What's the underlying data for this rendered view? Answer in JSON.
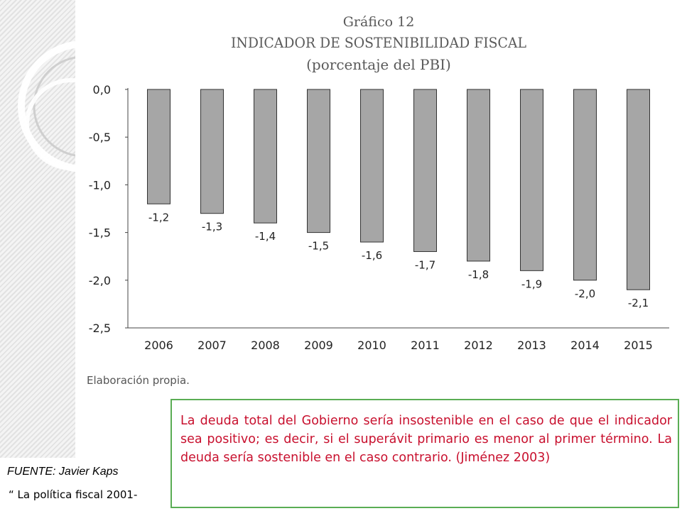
{
  "chart_data": {
    "type": "bar",
    "title": "Gráfico 12",
    "subtitle": "INDICADOR DE SOSTENIBILIDAD FISCAL",
    "subtitle2": "(porcentaje del PBI)",
    "categories": [
      "2006",
      "2007",
      "2008",
      "2009",
      "2010",
      "2011",
      "2012",
      "2013",
      "2014",
      "2015"
    ],
    "values": [
      -1.2,
      -1.3,
      -1.4,
      -1.5,
      -1.6,
      -1.7,
      -1.8,
      -1.9,
      -2.0,
      -2.1
    ],
    "value_labels": [
      "-1,2",
      "-1,3",
      "-1,4",
      "-1,5",
      "-1,6",
      "-1,7",
      "-1,8",
      "-1,9",
      "-2,0",
      "-2,1"
    ],
    "yticks": [
      0,
      -0.5,
      -1.0,
      -1.5,
      -2.0,
      -2.5
    ],
    "ytick_labels": [
      "0,0",
      "-0,5",
      "-1,0",
      "-1,5",
      "-2,0",
      "-2,5"
    ],
    "ylim": [
      -2.5,
      0
    ],
    "xlabel": "",
    "ylabel": "",
    "grid": false,
    "legend": "none",
    "footnote": "Elaboración propia.",
    "bar_color": "#a6a6a6"
  },
  "source": {
    "line1": "FUENTE: Javier Kaps",
    "line2": "“ La política fiscal 2001-"
  },
  "note": {
    "text": "La deuda total del Gobierno sería insostenible en el caso de que el indicador sea positivo; es decir, si el superávit primario es menor al primer término. La deuda sería sostenible en el caso contrario.    (Jiménez 2003)",
    "border_color": "#5aad54",
    "text_color": "#c8102e"
  }
}
